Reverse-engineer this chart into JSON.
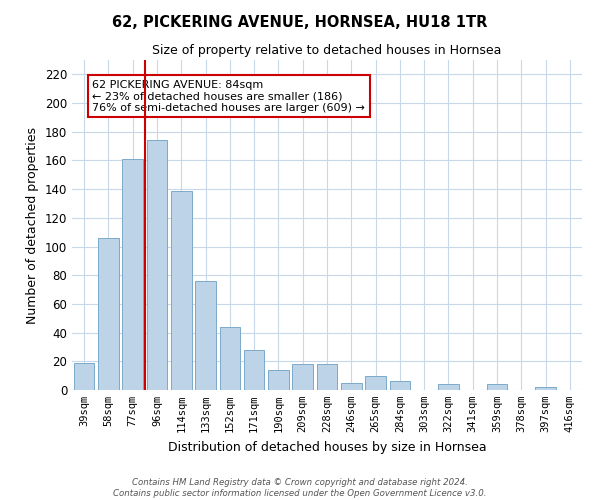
{
  "title": "62, PICKERING AVENUE, HORNSEA, HU18 1TR",
  "subtitle": "Size of property relative to detached houses in Hornsea",
  "xlabel": "Distribution of detached houses by size in Hornsea",
  "ylabel": "Number of detached properties",
  "categories": [
    "39sqm",
    "58sqm",
    "77sqm",
    "96sqm",
    "114sqm",
    "133sqm",
    "152sqm",
    "171sqm",
    "190sqm",
    "209sqm",
    "228sqm",
    "246sqm",
    "265sqm",
    "284sqm",
    "303sqm",
    "322sqm",
    "341sqm",
    "359sqm",
    "378sqm",
    "397sqm",
    "416sqm"
  ],
  "values": [
    19,
    106,
    161,
    174,
    139,
    76,
    44,
    28,
    14,
    18,
    18,
    5,
    10,
    6,
    0,
    4,
    0,
    4,
    0,
    2,
    0
  ],
  "bar_color": "#bdd4e8",
  "bar_edge_color": "#7aaac8",
  "vline_x": 2.5,
  "vline_color": "#cc0000",
  "ylim": [
    0,
    230
  ],
  "yticks": [
    0,
    20,
    40,
    60,
    80,
    100,
    120,
    140,
    160,
    180,
    200,
    220
  ],
  "annotation_title": "62 PICKERING AVENUE: 84sqm",
  "annotation_line1": "← 23% of detached houses are smaller (186)",
  "annotation_line2": "76% of semi-detached houses are larger (609) →",
  "annotation_box_color": "#ffffff",
  "annotation_box_edgecolor": "#cc0000",
  "footer_line1": "Contains HM Land Registry data © Crown copyright and database right 2024.",
  "footer_line2": "Contains public sector information licensed under the Open Government Licence v3.0.",
  "background_color": "#ffffff",
  "grid_color": "#c8d8e8"
}
